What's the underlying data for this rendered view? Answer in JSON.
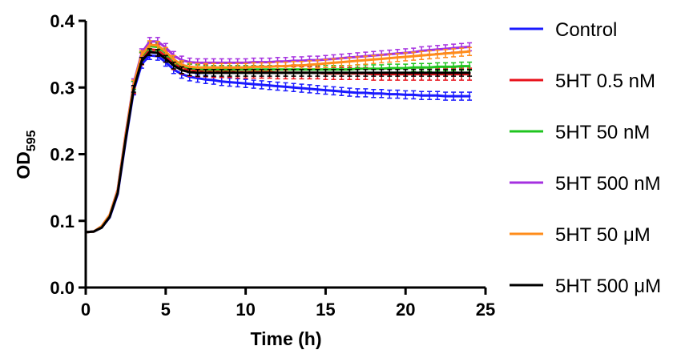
{
  "chart_data": {
    "type": "line",
    "xlabel": "Time (h)",
    "ylabel": {
      "main": "OD",
      "sub": "595"
    },
    "xlim": [
      0,
      25
    ],
    "ylim": [
      0,
      0.4
    ],
    "xticks": [
      0,
      5,
      10,
      15,
      20,
      25
    ],
    "yticks": [
      "0.0",
      "0.1",
      "0.2",
      "0.3",
      "0.4"
    ],
    "grid": false,
    "legend_position": "right",
    "x": [
      0,
      0.5,
      1,
      1.5,
      2,
      2.5,
      3,
      3.5,
      4,
      4.5,
      5,
      5.5,
      6,
      6.5,
      7,
      7.5,
      8,
      8.5,
      9,
      9.5,
      10,
      10.5,
      11,
      11.5,
      12,
      12.5,
      13,
      13.5,
      14,
      14.5,
      15,
      15.5,
      16,
      16.5,
      17,
      17.5,
      18,
      18.5,
      19,
      19.5,
      20,
      20.5,
      21,
      21.5,
      22,
      22.5,
      23,
      23.5,
      24
    ],
    "series": [
      {
        "name": "Control",
        "color": "#1a1aff",
        "error": 0.006,
        "values": [
          0.083,
          0.084,
          0.09,
          0.105,
          0.14,
          0.22,
          0.295,
          0.335,
          0.348,
          0.347,
          0.338,
          0.327,
          0.32,
          0.316,
          0.314,
          0.312,
          0.311,
          0.309,
          0.308,
          0.307,
          0.306,
          0.305,
          0.304,
          0.303,
          0.302,
          0.301,
          0.3,
          0.299,
          0.298,
          0.297,
          0.296,
          0.295,
          0.294,
          0.293,
          0.292,
          0.292,
          0.291,
          0.291,
          0.29,
          0.29,
          0.289,
          0.289,
          0.288,
          0.288,
          0.288,
          0.287,
          0.287,
          0.287,
          0.287
        ]
      },
      {
        "name": "5HT 0.5 nM",
        "color": "#e8121b",
        "error": 0.009,
        "values": [
          0.083,
          0.084,
          0.091,
          0.107,
          0.143,
          0.225,
          0.3,
          0.343,
          0.357,
          0.356,
          0.347,
          0.336,
          0.329,
          0.326,
          0.325,
          0.325,
          0.324,
          0.324,
          0.324,
          0.323,
          0.323,
          0.323,
          0.323,
          0.323,
          0.322,
          0.322,
          0.322,
          0.322,
          0.322,
          0.322,
          0.321,
          0.321,
          0.321,
          0.321,
          0.321,
          0.321,
          0.32,
          0.32,
          0.32,
          0.32,
          0.32,
          0.32,
          0.32,
          0.32,
          0.32,
          0.32,
          0.32,
          0.32,
          0.32
        ]
      },
      {
        "name": "5HT 50 nM",
        "color": "#1fc41f",
        "error": 0.006,
        "values": [
          0.083,
          0.084,
          0.091,
          0.108,
          0.145,
          0.228,
          0.303,
          0.347,
          0.362,
          0.361,
          0.352,
          0.34,
          0.333,
          0.329,
          0.328,
          0.327,
          0.327,
          0.327,
          0.327,
          0.327,
          0.327,
          0.327,
          0.327,
          0.327,
          0.327,
          0.327,
          0.327,
          0.327,
          0.327,
          0.327,
          0.327,
          0.327,
          0.327,
          0.327,
          0.328,
          0.328,
          0.328,
          0.328,
          0.329,
          0.329,
          0.329,
          0.33,
          0.33,
          0.33,
          0.331,
          0.331,
          0.331,
          0.332,
          0.332
        ]
      },
      {
        "name": "5HT 500 nM",
        "color": "#a530e0",
        "error": 0.006,
        "values": [
          0.083,
          0.084,
          0.092,
          0.109,
          0.147,
          0.231,
          0.307,
          0.352,
          0.369,
          0.369,
          0.36,
          0.348,
          0.341,
          0.338,
          0.337,
          0.337,
          0.337,
          0.337,
          0.337,
          0.337,
          0.337,
          0.338,
          0.338,
          0.338,
          0.339,
          0.339,
          0.34,
          0.34,
          0.341,
          0.341,
          0.342,
          0.343,
          0.344,
          0.345,
          0.346,
          0.347,
          0.348,
          0.349,
          0.35,
          0.351,
          0.352,
          0.353,
          0.355,
          0.356,
          0.357,
          0.358,
          0.359,
          0.36,
          0.361
        ]
      },
      {
        "name": "5HT 50 μM",
        "color": "#ff8c1a",
        "error": 0.006,
        "values": [
          0.083,
          0.084,
          0.092,
          0.109,
          0.146,
          0.229,
          0.305,
          0.349,
          0.364,
          0.363,
          0.354,
          0.342,
          0.334,
          0.331,
          0.33,
          0.33,
          0.33,
          0.33,
          0.33,
          0.33,
          0.33,
          0.331,
          0.331,
          0.331,
          0.332,
          0.332,
          0.333,
          0.333,
          0.334,
          0.335,
          0.336,
          0.337,
          0.338,
          0.339,
          0.34,
          0.341,
          0.342,
          0.343,
          0.344,
          0.345,
          0.346,
          0.347,
          0.348,
          0.349,
          0.35,
          0.351,
          0.352,
          0.353,
          0.354
        ]
      },
      {
        "name": "5HT 500 μM",
        "color": "#000000",
        "error": 0.005,
        "values": [
          0.083,
          0.084,
          0.09,
          0.106,
          0.142,
          0.223,
          0.298,
          0.34,
          0.353,
          0.352,
          0.343,
          0.333,
          0.326,
          0.323,
          0.322,
          0.322,
          0.322,
          0.322,
          0.322,
          0.322,
          0.322,
          0.322,
          0.322,
          0.322,
          0.322,
          0.322,
          0.322,
          0.322,
          0.322,
          0.322,
          0.322,
          0.322,
          0.322,
          0.322,
          0.322,
          0.322,
          0.322,
          0.322,
          0.322,
          0.322,
          0.322,
          0.322,
          0.322,
          0.322,
          0.322,
          0.322,
          0.322,
          0.322,
          0.322
        ]
      }
    ]
  }
}
